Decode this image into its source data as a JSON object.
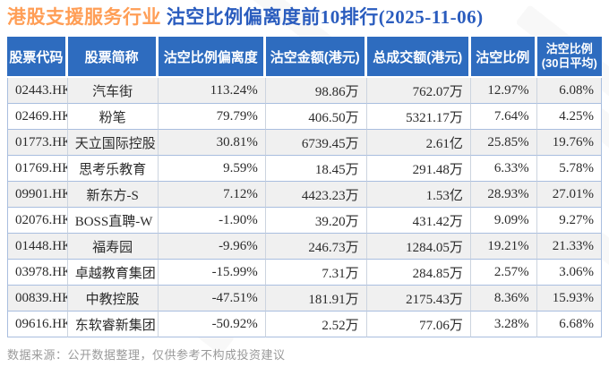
{
  "title": {
    "industry": "港股支援服务行业",
    "ranking": "沽空比例偏离度前10排行(2025-11-06)"
  },
  "table": {
    "headers": [
      "股票代码",
      "股票简称",
      "沽空比例偏离度",
      "沽空金额(港元)",
      "总成交额(港元)",
      "沽空比例"
    ],
    "header_last": {
      "line1": "沽空比例",
      "line2": "(30日平均)"
    },
    "rows": [
      [
        "02443.HK",
        "汽车街",
        "113.24%",
        "98.86万",
        "762.07万",
        "12.97%",
        "6.08%"
      ],
      [
        "02469.HK",
        "粉笔",
        "79.79%",
        "406.50万",
        "5321.17万",
        "7.64%",
        "4.25%"
      ],
      [
        "01773.HK",
        "天立国际控股",
        "30.81%",
        "6739.45万",
        "2.61亿",
        "25.85%",
        "19.76%"
      ],
      [
        "01769.HK",
        "思考乐教育",
        "9.59%",
        "18.45万",
        "291.48万",
        "6.33%",
        "5.78%"
      ],
      [
        "09901.HK",
        "新东方-S",
        "7.12%",
        "4423.23万",
        "1.53亿",
        "28.93%",
        "27.01%"
      ],
      [
        "02076.HK",
        "BOSS直聘-W",
        "-1.90%",
        "39.20万",
        "431.42万",
        "9.09%",
        "9.27%"
      ],
      [
        "01448.HK",
        "福寿园",
        "-9.96%",
        "246.73万",
        "1284.05万",
        "19.21%",
        "21.33%"
      ],
      [
        "03978.HK",
        "卓越教育集团",
        "-15.99%",
        "7.31万",
        "284.85万",
        "2.57%",
        "3.06%"
      ],
      [
        "00839.HK",
        "中教控股",
        "-47.51%",
        "181.91万",
        "2175.43万",
        "8.36%",
        "15.93%"
      ],
      [
        "09616.HK",
        "东软睿新集团",
        "-50.92%",
        "2.52万",
        "77.06万",
        "3.28%",
        "6.68%"
      ]
    ],
    "cell_names": [
      "stock-code-cell",
      "stock-name-cell",
      "deviation-cell",
      "short-amount-cell",
      "turnover-cell",
      "short-ratio-cell",
      "short-ratio-30d-cell"
    ]
  },
  "footer": {
    "note": "数据来源：公开数据整理，仅供参考不构成投资建议"
  },
  "colors": {
    "header_bg": "#2e6cbf",
    "title_orange": "#ff9e56",
    "title_blue": "#2a5cbe",
    "row_alt_bg": "#f0f0f0",
    "row_border": "#a9bedf",
    "footer_text": "#9a9a9a"
  }
}
